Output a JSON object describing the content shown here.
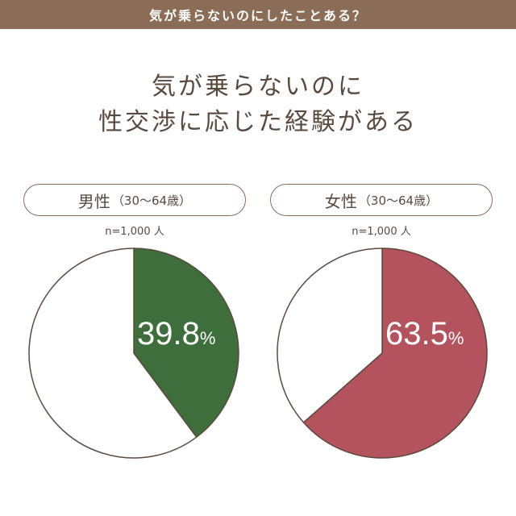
{
  "header": {
    "title": "気が乗らないのにしたことある？"
  },
  "headline": {
    "line1": "気が乗らないのに",
    "line2": "性交渉に応じた経験がある"
  },
  "groups": [
    {
      "label": "男性",
      "sub": "（30〜64歳）",
      "sample": "n=1,000 人"
    },
    {
      "label": "女性",
      "sub": "（30〜64歳）",
      "sample": "n=1,000 人"
    }
  ],
  "chart_data": [
    {
      "type": "pie",
      "title": "男性（30〜64歳）",
      "slices": [
        {
          "label": "",
          "value": 39.8,
          "color": "#3e6e3b"
        },
        {
          "label": "",
          "value": 60.2,
          "color": "#ffffff"
        }
      ],
      "value_label": "39.8",
      "unit": "%"
    },
    {
      "type": "pie",
      "title": "女性（30〜64歳）",
      "slices": [
        {
          "label": "",
          "value": 63.5,
          "color": "#b4525e"
        },
        {
          "label": "",
          "value": 36.5,
          "color": "#ffffff"
        }
      ],
      "value_label": "63.5",
      "unit": "%"
    }
  ],
  "colors": {
    "brand": "#8b6c56",
    "outline": "#5a4a3e",
    "male": "#3e6e3b",
    "female": "#b4525e"
  }
}
